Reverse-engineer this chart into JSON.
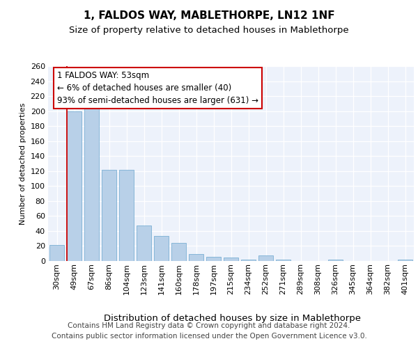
{
  "title1": "1, FALDOS WAY, MABLETHORPE, LN12 1NF",
  "title2": "Size of property relative to detached houses in Mablethorpe",
  "xlabel": "Distribution of detached houses by size in Mablethorpe",
  "ylabel": "Number of detached properties",
  "categories": [
    "30sqm",
    "49sqm",
    "67sqm",
    "86sqm",
    "104sqm",
    "123sqm",
    "141sqm",
    "160sqm",
    "178sqm",
    "197sqm",
    "215sqm",
    "234sqm",
    "252sqm",
    "271sqm",
    "289sqm",
    "308sqm",
    "326sqm",
    "345sqm",
    "364sqm",
    "382sqm",
    "401sqm"
  ],
  "values": [
    21,
    200,
    213,
    122,
    122,
    47,
    33,
    24,
    9,
    6,
    5,
    2,
    7,
    2,
    0,
    0,
    2,
    0,
    0,
    0,
    2
  ],
  "bar_color": "#b8d0e8",
  "bar_edge_color": "#7aafd4",
  "annotation_text_line1": "1 FALDOS WAY: 53sqm",
  "annotation_text_line2": "← 6% of detached houses are smaller (40)",
  "annotation_text_line3": "93% of semi-detached houses are larger (631) →",
  "box_color": "#ffffff",
  "box_edge_color": "#cc0000",
  "red_line_x": 1.5,
  "ylim": [
    0,
    260
  ],
  "yticks": [
    0,
    20,
    40,
    60,
    80,
    100,
    120,
    140,
    160,
    180,
    200,
    220,
    240,
    260
  ],
  "footer_line1": "Contains HM Land Registry data © Crown copyright and database right 2024.",
  "footer_line2": "Contains public sector information licensed under the Open Government Licence v3.0.",
  "bg_color": "#edf2fb",
  "grid_color": "#ffffff",
  "title1_fontsize": 11,
  "title2_fontsize": 9.5,
  "xlabel_fontsize": 9.5,
  "ylabel_fontsize": 8,
  "tick_fontsize": 8,
  "footer_fontsize": 7.5,
  "annot_fontsize": 8.5
}
